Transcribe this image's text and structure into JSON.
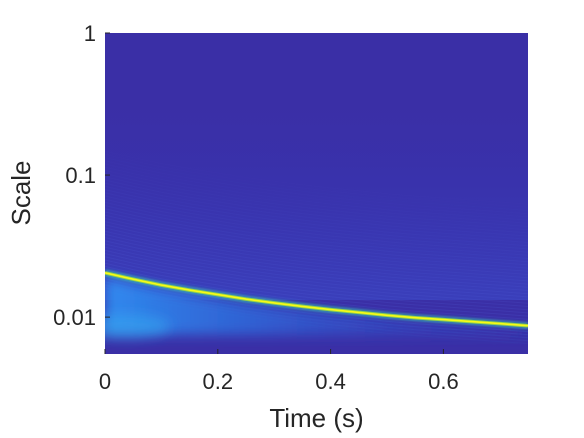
{
  "chart_data": {
    "type": "heatmap",
    "title": "",
    "xlabel": "Time (s)",
    "ylabel": "Scale",
    "xlim": [
      0,
      0.75
    ],
    "ylim": [
      0.0055,
      1
    ],
    "yscale": "log",
    "x_ticks": [
      {
        "value": 0,
        "label": "0"
      },
      {
        "value": 0.2,
        "label": "0.2"
      },
      {
        "value": 0.4,
        "label": "0.4"
      },
      {
        "value": 0.6,
        "label": "0.6"
      }
    ],
    "y_ticks": [
      {
        "value": 1,
        "label": "1"
      },
      {
        "value": 0.1,
        "label": "0.1"
      },
      {
        "value": 0.01,
        "label": "0.01"
      }
    ],
    "ridge": {
      "name": "",
      "points": [
        {
          "x": 0.0,
          "y": 0.0205
        },
        {
          "x": 0.05,
          "y": 0.0185
        },
        {
          "x": 0.1,
          "y": 0.0168
        },
        {
          "x": 0.15,
          "y": 0.0155
        },
        {
          "x": 0.2,
          "y": 0.0144
        },
        {
          "x": 0.25,
          "y": 0.0134
        },
        {
          "x": 0.3,
          "y": 0.0126
        },
        {
          "x": 0.35,
          "y": 0.0119
        },
        {
          "x": 0.4,
          "y": 0.0113
        },
        {
          "x": 0.45,
          "y": 0.0108
        },
        {
          "x": 0.5,
          "y": 0.0103
        },
        {
          "x": 0.55,
          "y": 0.0099
        },
        {
          "x": 0.6,
          "y": 0.0096
        },
        {
          "x": 0.65,
          "y": 0.0093
        },
        {
          "x": 0.7,
          "y": 0.009
        },
        {
          "x": 0.75,
          "y": 0.0087
        }
      ]
    },
    "colormap": [
      "#3e26a8",
      "#2e87f7",
      "#36c2a8",
      "#bfbc26",
      "#f9fb15"
    ],
    "background_color": "#3a2fa6",
    "grid": false,
    "legend": "none"
  }
}
